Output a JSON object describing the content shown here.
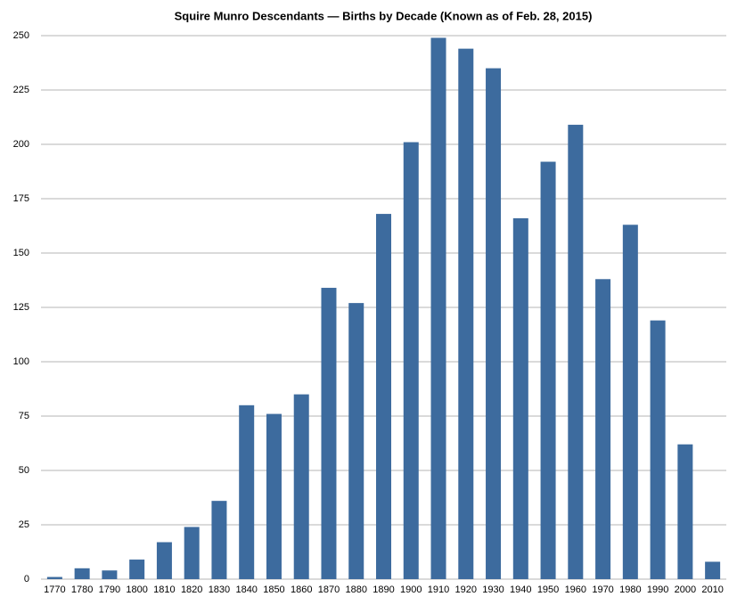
{
  "chart_data": {
    "type": "bar",
    "title": "Squire Munro Descendants — Births by Decade (Known as of Feb. 28, 2015)",
    "categories": [
      "1770",
      "1780",
      "1790",
      "1800",
      "1810",
      "1820",
      "1830",
      "1840",
      "1850",
      "1860",
      "1870",
      "1880",
      "1890",
      "1900",
      "1910",
      "1920",
      "1930",
      "1940",
      "1950",
      "1960",
      "1970",
      "1980",
      "1990",
      "2000",
      "2010"
    ],
    "values": [
      1,
      5,
      4,
      9,
      17,
      24,
      36,
      80,
      76,
      85,
      134,
      127,
      168,
      201,
      249,
      244,
      235,
      166,
      192,
      209,
      138,
      163,
      119,
      62,
      8
    ],
    "color": "#3d6b9e",
    "ylim": [
      0,
      250
    ],
    "yticks": [
      0,
      25,
      50,
      75,
      100,
      125,
      150,
      175,
      200,
      225,
      250
    ],
    "grid": true
  }
}
